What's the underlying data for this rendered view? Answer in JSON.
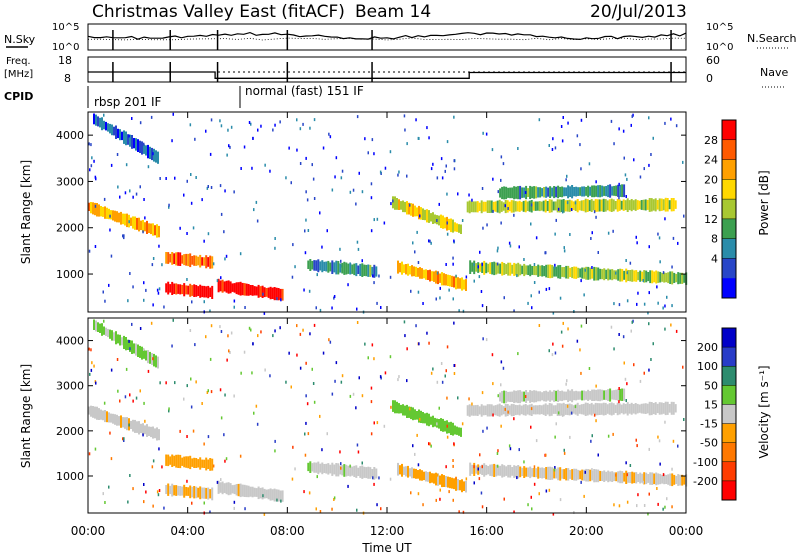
{
  "header": {
    "title": "Christmas Valley East (fitACF)",
    "beam": "Beam 14",
    "date": "20/Jul/2013"
  },
  "nsky_panel": {
    "left_label": "N.Sky",
    "y_ticks": [
      "10^5",
      "10^0"
    ],
    "right_label": "N.Search",
    "right_ticks": [
      "10^5",
      "10^0"
    ]
  },
  "freq_panel": {
    "left_label_line1": "Freq.",
    "left_label_line2": "[MHz]",
    "y_ticks": [
      "18",
      "8"
    ],
    "right_label": "Nave",
    "right_ticks": [
      "60",
      "0"
    ]
  },
  "cpid": {
    "label": "CPID",
    "segments": [
      "rbsp 201 IF",
      "normal (fast) 151 IF"
    ]
  },
  "power_panel": {
    "ylabel": "Slant Range [km]",
    "y_ticks": [
      "4000",
      "3000",
      "2000",
      "1000"
    ],
    "colorbar_label": "Power [dB]",
    "colorbar_ticks": [
      "28",
      "24",
      "20",
      "16",
      "12",
      "8",
      "4"
    ],
    "colorbar_colors": [
      "#ff0000",
      "#ff5a00",
      "#ffa000",
      "#ffd800",
      "#a8c832",
      "#3ca050",
      "#2a8caa",
      "#2846c8",
      "#0000ff"
    ]
  },
  "velocity_panel": {
    "ylabel": "Slant Range [km]",
    "y_ticks": [
      "4000",
      "3000",
      "2000",
      "1000"
    ],
    "colorbar_label": "Velocity [m s⁻¹]",
    "colorbar_ticks": [
      "200",
      "100",
      "50",
      "15",
      "-15",
      "-50",
      "-100",
      "-200"
    ],
    "colorbar_colors": [
      "#0000c8",
      "#283cc8",
      "#2d8c6e",
      "#64c832",
      "#c8c8c8",
      "#ffa000",
      "#ff7800",
      "#ff3c00",
      "#ff0000"
    ]
  },
  "x_axis": {
    "tick_labels": [
      "00:00",
      "04:00",
      "08:00",
      "12:00",
      "16:00",
      "20:00",
      "00:00"
    ],
    "label": "Time UT"
  },
  "chart_data": {
    "type": "heatmap",
    "title": "Christmas Valley East (fitACF) Beam 14 20/Jul/2013",
    "xlabel": "Time UT",
    "ylabel": "Slant Range [km]",
    "x_range_hours": [
      0,
      24
    ],
    "y_range_km": [
      180,
      4500
    ],
    "panels": [
      "Power [dB]",
      "Velocity [m s⁻¹]"
    ],
    "power_colorbar_range_db": [
      0,
      30
    ],
    "velocity_colorbar_range": [
      -200,
      200
    ],
    "echo_bands": [
      {
        "t_start": 0.0,
        "t_end": 2.9,
        "r_start": 2450,
        "r_end": 1900,
        "power_db": 20,
        "velocity": -10
      },
      {
        "t_start": 0.2,
        "t_end": 2.8,
        "r_start": 4350,
        "r_end": 3500,
        "power_db": 6,
        "velocity": 30
      },
      {
        "t_start": 3.1,
        "t_end": 5.0,
        "r_start": 1350,
        "r_end": 1250,
        "power_db": 24,
        "velocity": -40
      },
      {
        "t_start": 3.1,
        "t_end": 5.0,
        "r_start": 700,
        "r_end": 600,
        "power_db": 28,
        "velocity": -20
      },
      {
        "t_start": 5.2,
        "t_end": 7.8,
        "r_start": 750,
        "r_end": 550,
        "power_db": 29,
        "velocity": -10
      },
      {
        "t_start": 8.8,
        "t_end": 11.6,
        "r_start": 1200,
        "r_end": 1050,
        "power_db": 10,
        "velocity": 10
      },
      {
        "t_start": 12.2,
        "t_end": 15.0,
        "r_start": 2550,
        "r_end": 1950,
        "power_db": 18,
        "velocity": 40
      },
      {
        "t_start": 12.4,
        "t_end": 15.2,
        "r_start": 1150,
        "r_end": 750,
        "power_db": 20,
        "velocity": -30
      },
      {
        "t_start": 15.3,
        "t_end": 24.0,
        "r_start": 1150,
        "r_end": 900,
        "power_db": 14,
        "velocity": -15
      },
      {
        "t_start": 15.2,
        "t_end": 23.6,
        "r_start": 2450,
        "r_end": 2500,
        "power_db": 16,
        "velocity": 5
      },
      {
        "t_start": 16.5,
        "t_end": 21.5,
        "r_start": 2750,
        "r_end": 2800,
        "power_db": 10,
        "velocity": 10
      }
    ]
  }
}
